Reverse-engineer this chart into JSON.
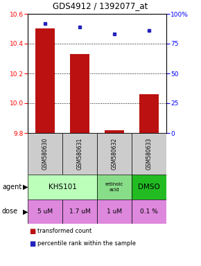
{
  "title": "GDS4912 / 1392077_at",
  "samples": [
    "GSM580630",
    "GSM580631",
    "GSM580632",
    "GSM580633"
  ],
  "bar_values": [
    10.5,
    10.33,
    9.82,
    10.06
  ],
  "bar_bottom": 9.8,
  "dot_values": [
    92,
    89,
    83,
    86
  ],
  "ylim_left": [
    9.8,
    10.6
  ],
  "ylim_right": [
    0,
    100
  ],
  "yticks_left": [
    9.8,
    10.0,
    10.2,
    10.4,
    10.6
  ],
  "yticks_right": [
    0,
    25,
    50,
    75,
    100
  ],
  "ytick_labels_right": [
    "0",
    "25",
    "50",
    "75",
    "100%"
  ],
  "bar_color": "#bb1111",
  "dot_color": "#2222bb",
  "agent_colors": [
    "#bbffbb",
    "#88dd88",
    "#22bb22"
  ],
  "dose_color": "#dd88dd",
  "sample_bg": "#cccccc",
  "dose_labels": [
    "5 uM",
    "1.7 uM",
    "1 uM",
    "0.1 %"
  ],
  "legend_bar_color": "#bb1111",
  "legend_dot_color": "#2222bb"
}
